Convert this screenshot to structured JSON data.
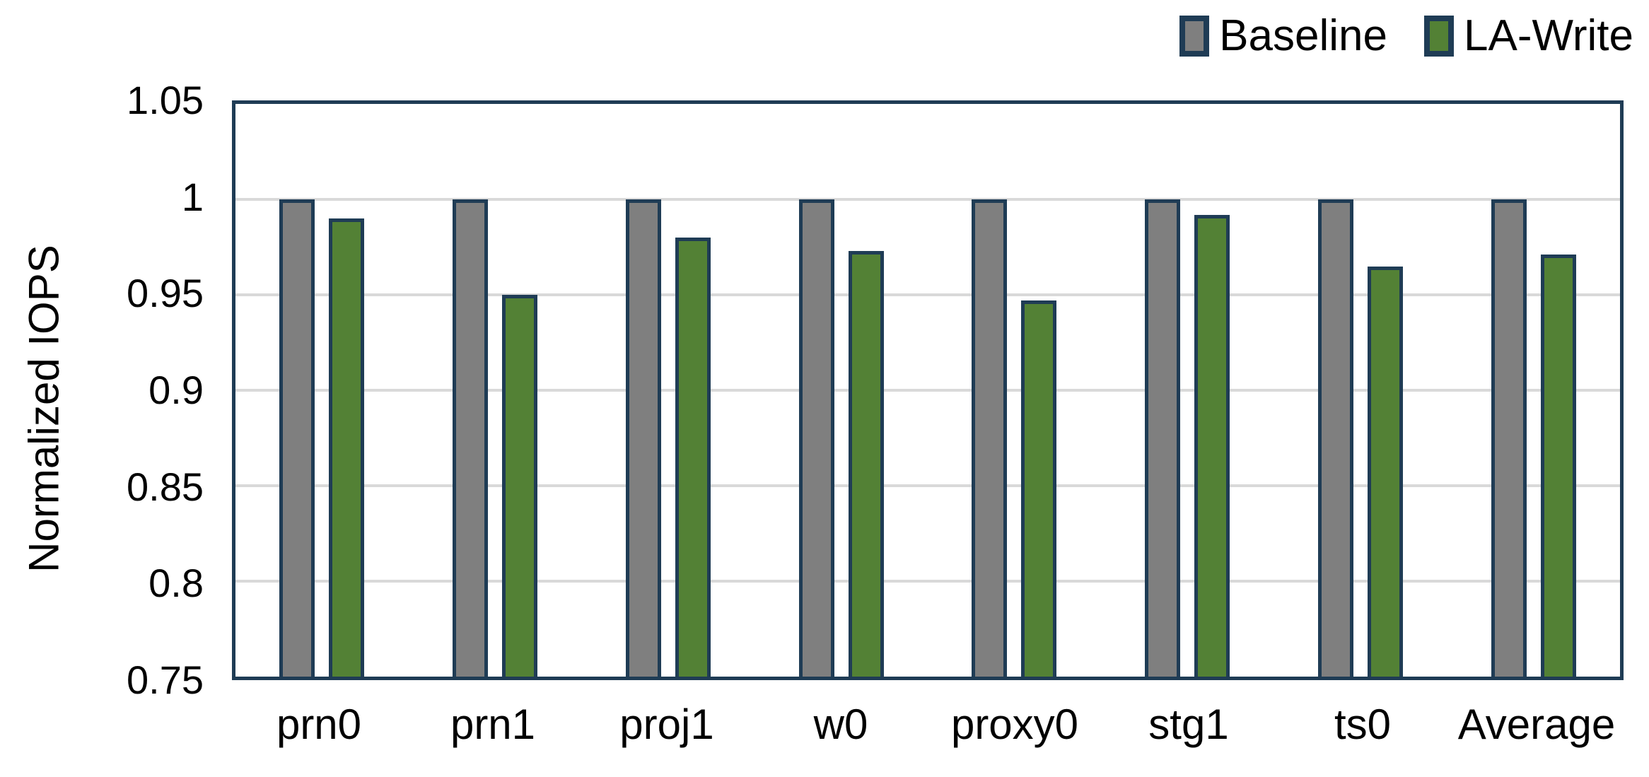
{
  "chart_data": {
    "type": "bar",
    "title": "",
    "xlabel": "",
    "ylabel": "Normalized IOPS",
    "categories": [
      "prn0",
      "prn1",
      "proj1",
      "w0",
      "proxy0",
      "stg1",
      "ts0",
      "Average"
    ],
    "series": [
      {
        "name": "Baseline",
        "color": "#7F7F7F",
        "values": [
          1.0,
          1.0,
          1.0,
          1.0,
          1.0,
          1.0,
          1.0,
          1.0
        ]
      },
      {
        "name": "LA-Write",
        "color": "#538135",
        "values": [
          0.99,
          0.95,
          0.98,
          0.973,
          0.947,
          0.992,
          0.965,
          0.971
        ]
      }
    ],
    "ylim": [
      0.75,
      1.05
    ],
    "yticks": [
      1.05,
      1.0,
      0.95,
      0.9,
      0.85,
      0.8,
      0.75
    ],
    "ytick_labels": [
      "1.05",
      "1",
      "0.95",
      "0.9",
      "0.85",
      "0.8",
      "0.75"
    ],
    "grid": "horizontal",
    "legend_position": "top-right",
    "colors": {
      "bar_border": "#1F3C55",
      "frame": "#1F3C55",
      "gridline": "#D9D9D9",
      "baseline_fill": "#7F7F7F",
      "la_write_fill": "#538135",
      "text": "#000000"
    }
  }
}
